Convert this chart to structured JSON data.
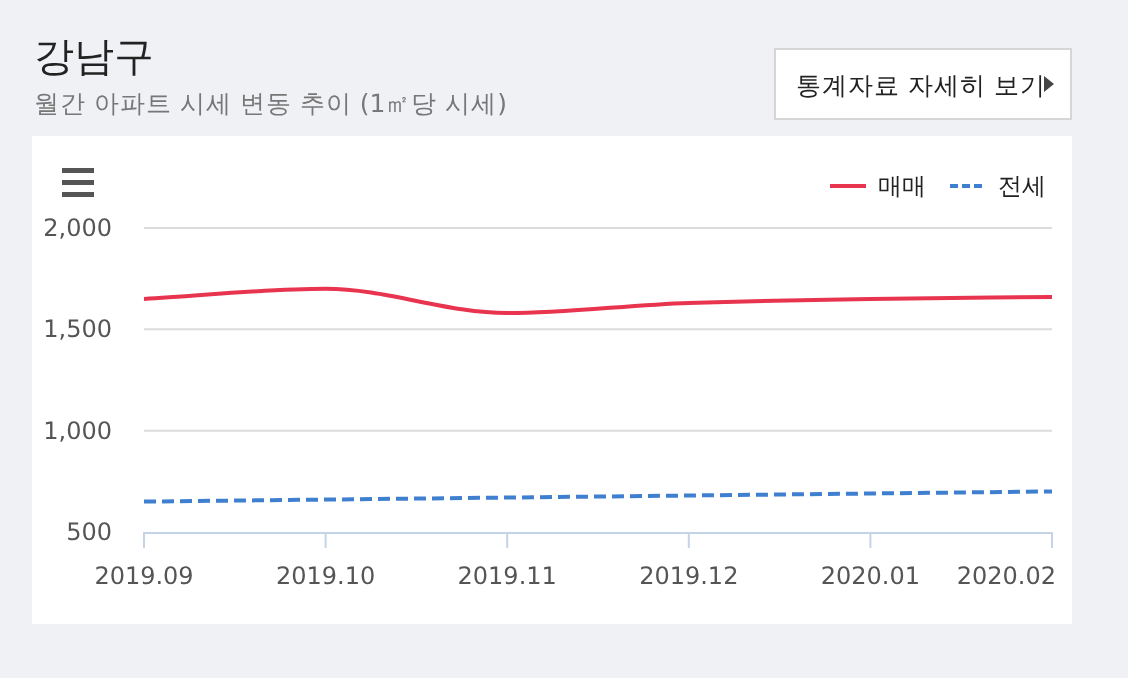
{
  "chart_data": {
    "type": "line",
    "title": "강남구",
    "subtitle": "월간 아파트 시세 변동 추이 (1㎡당 시세)",
    "annotations": [
      "통계자료 자세히 보기"
    ],
    "categories": [
      "2019.09",
      "2019.10",
      "2019.11",
      "2019.12",
      "2020.01",
      "2020.02"
    ],
    "series": [
      {
        "name": "매매",
        "color": "#e8344e",
        "line_style": "solid",
        "values": [
          1650,
          1700,
          1580,
          1630,
          1650,
          1660
        ]
      },
      {
        "name": "전세",
        "color": "#3f7fd0",
        "line_style": "dashed",
        "values": [
          650,
          660,
          670,
          680,
          690,
          700
        ]
      }
    ],
    "ylim": [
      500,
      2000
    ],
    "yticks": [
      500,
      {
        "value": 1000,
        "label": "1,000"
      },
      {
        "value": 1500,
        "label": "1,500"
      },
      {
        "value": 2000,
        "label": "2,000"
      }
    ],
    "grid": "y",
    "legend": "top right",
    "marker": "none"
  }
}
